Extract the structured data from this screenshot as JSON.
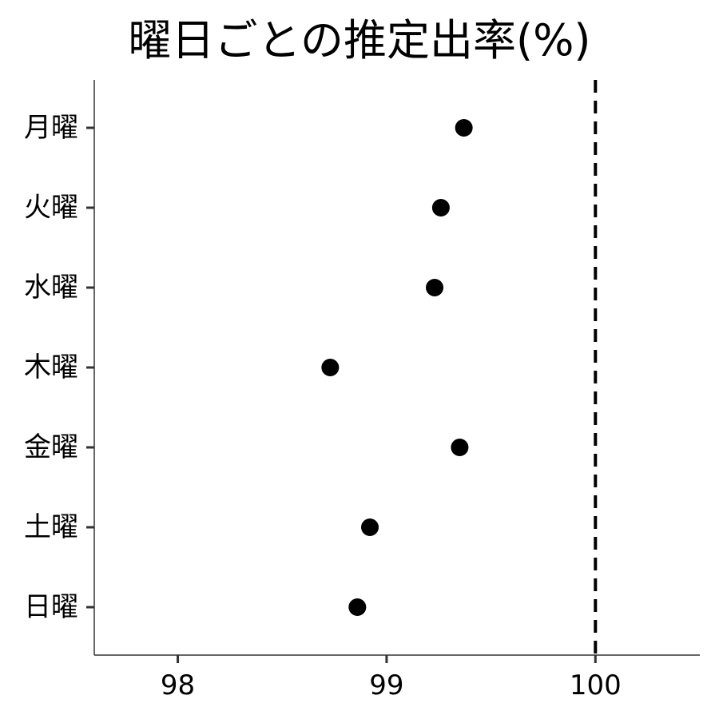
{
  "chart_data": {
    "type": "scatter",
    "title": "曜日ごとの推定出率(%)",
    "xlabel": "",
    "ylabel": "",
    "categories": [
      "月曜",
      "火曜",
      "水曜",
      "木曜",
      "金曜",
      "土曜",
      "日曜"
    ],
    "values": [
      99.37,
      99.26,
      99.23,
      98.73,
      99.35,
      98.92,
      98.86
    ],
    "xlim": [
      97.6,
      100.5
    ],
    "x_ticks": [
      98,
      99,
      100
    ],
    "x_tick_labels": [
      "98",
      "99",
      "100"
    ],
    "reference_line": {
      "x": 100,
      "style": "dashed"
    },
    "grid": false,
    "legend": "none",
    "colors": {
      "point": "#000000",
      "reference_line": "#000000",
      "axis": "#333333"
    }
  }
}
